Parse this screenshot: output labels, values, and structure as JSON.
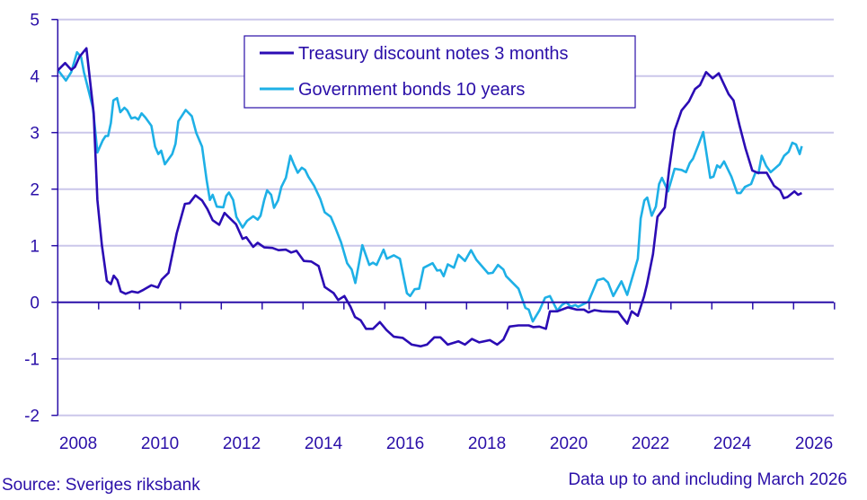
{
  "chart_data": {
    "type": "line",
    "title": "",
    "xlabel": "",
    "ylabel": "",
    "ylim": [
      -2,
      5
    ],
    "xlim": [
      2008,
      2027
    ],
    "y_ticks": [
      "5",
      "4",
      "3",
      "2",
      "1",
      "0",
      "-1",
      "-2"
    ],
    "y_tick_values": [
      5,
      4,
      3,
      2,
      1,
      0,
      -1,
      -2
    ],
    "x_ticks": [
      "2008",
      "2010",
      "2012",
      "2014",
      "2016",
      "2018",
      "2020",
      "2022",
      "2024",
      "2026"
    ],
    "grid": true,
    "legend_position": "top-center",
    "colors": {
      "treasury": "#2b0cb4",
      "bonds": "#1eb0e6",
      "axis": "#2a0fa8",
      "grid": "#cbc7ea"
    },
    "series": [
      {
        "name": "Treasury discount notes 3 months",
        "points": [
          [
            2008.0,
            4.1
          ],
          [
            2008.18,
            4.23
          ],
          [
            2008.33,
            4.11
          ],
          [
            2008.42,
            4.16
          ],
          [
            2008.53,
            4.34
          ],
          [
            2008.7,
            4.49
          ],
          [
            2008.88,
            3.34
          ],
          [
            2008.97,
            1.81
          ],
          [
            2009.08,
            1.01
          ],
          [
            2009.2,
            0.38
          ],
          [
            2009.3,
            0.32
          ],
          [
            2009.37,
            0.47
          ],
          [
            2009.46,
            0.39
          ],
          [
            2009.54,
            0.19
          ],
          [
            2009.66,
            0.15
          ],
          [
            2009.81,
            0.19
          ],
          [
            2009.96,
            0.17
          ],
          [
            2010.1,
            0.22
          ],
          [
            2010.29,
            0.3
          ],
          [
            2010.45,
            0.26
          ],
          [
            2010.54,
            0.4
          ],
          [
            2010.71,
            0.52
          ],
          [
            2010.91,
            1.22
          ],
          [
            2011.11,
            1.74
          ],
          [
            2011.22,
            1.75
          ],
          [
            2011.37,
            1.89
          ],
          [
            2011.53,
            1.8
          ],
          [
            2011.66,
            1.65
          ],
          [
            2011.79,
            1.45
          ],
          [
            2011.95,
            1.37
          ],
          [
            2012.08,
            1.58
          ],
          [
            2012.19,
            1.5
          ],
          [
            2012.36,
            1.38
          ],
          [
            2012.52,
            1.12
          ],
          [
            2012.61,
            1.15
          ],
          [
            2012.78,
            0.98
          ],
          [
            2012.89,
            1.05
          ],
          [
            2013.05,
            0.97
          ],
          [
            2013.25,
            0.96
          ],
          [
            2013.4,
            0.92
          ],
          [
            2013.58,
            0.93
          ],
          [
            2013.71,
            0.88
          ],
          [
            2013.84,
            0.91
          ],
          [
            2014.02,
            0.73
          ],
          [
            2014.2,
            0.72
          ],
          [
            2014.38,
            0.64
          ],
          [
            2014.53,
            0.27
          ],
          [
            2014.75,
            0.16
          ],
          [
            2014.86,
            0.04
          ],
          [
            2015.01,
            0.11
          ],
          [
            2015.16,
            -0.08
          ],
          [
            2015.27,
            -0.26
          ],
          [
            2015.41,
            -0.32
          ],
          [
            2015.54,
            -0.47
          ],
          [
            2015.71,
            -0.47
          ],
          [
            2015.88,
            -0.35
          ],
          [
            2016.04,
            -0.49
          ],
          [
            2016.22,
            -0.61
          ],
          [
            2016.44,
            -0.63
          ],
          [
            2016.66,
            -0.75
          ],
          [
            2016.88,
            -0.78
          ],
          [
            2017.03,
            -0.75
          ],
          [
            2017.21,
            -0.62
          ],
          [
            2017.36,
            -0.62
          ],
          [
            2017.54,
            -0.75
          ],
          [
            2017.8,
            -0.69
          ],
          [
            2017.96,
            -0.75
          ],
          [
            2018.13,
            -0.65
          ],
          [
            2018.31,
            -0.71
          ],
          [
            2018.57,
            -0.67
          ],
          [
            2018.75,
            -0.75
          ],
          [
            2018.9,
            -0.66
          ],
          [
            2019.05,
            -0.43
          ],
          [
            2019.27,
            -0.41
          ],
          [
            2019.52,
            -0.41
          ],
          [
            2019.63,
            -0.44
          ],
          [
            2019.78,
            -0.43
          ],
          [
            2019.94,
            -0.47
          ],
          [
            2020.04,
            -0.16
          ],
          [
            2020.22,
            -0.16
          ],
          [
            2020.48,
            -0.09
          ],
          [
            2020.69,
            -0.13
          ],
          [
            2020.87,
            -0.13
          ],
          [
            2020.98,
            -0.18
          ],
          [
            2021.13,
            -0.14
          ],
          [
            2021.31,
            -0.16
          ],
          [
            2021.71,
            -0.17
          ],
          [
            2021.82,
            -0.28
          ],
          [
            2021.93,
            -0.38
          ],
          [
            2022.04,
            -0.16
          ],
          [
            2022.19,
            -0.24
          ],
          [
            2022.34,
            0.1
          ],
          [
            2022.41,
            0.31
          ],
          [
            2022.56,
            0.85
          ],
          [
            2022.67,
            1.51
          ],
          [
            2022.85,
            1.68
          ],
          [
            2022.96,
            2.38
          ],
          [
            2023.09,
            3.04
          ],
          [
            2023.26,
            3.39
          ],
          [
            2023.44,
            3.55
          ],
          [
            2023.59,
            3.77
          ],
          [
            2023.71,
            3.84
          ],
          [
            2023.86,
            4.07
          ],
          [
            2024.02,
            3.96
          ],
          [
            2024.17,
            4.05
          ],
          [
            2024.41,
            3.68
          ],
          [
            2024.53,
            3.57
          ],
          [
            2024.68,
            3.12
          ],
          [
            2024.82,
            2.73
          ],
          [
            2024.99,
            2.33
          ],
          [
            2025.12,
            2.29
          ],
          [
            2025.34,
            2.29
          ],
          [
            2025.52,
            2.06
          ],
          [
            2025.67,
            1.98
          ],
          [
            2025.76,
            1.84
          ],
          [
            2025.85,
            1.86
          ],
          [
            2026.02,
            1.96
          ],
          [
            2026.11,
            1.9
          ],
          [
            2026.2,
            1.93
          ]
        ]
      },
      {
        "name": "Government bonds 10 years",
        "points": [
          [
            2008.02,
            4.09
          ],
          [
            2008.2,
            3.92
          ],
          [
            2008.33,
            4.07
          ],
          [
            2008.47,
            4.42
          ],
          [
            2008.57,
            4.34
          ],
          [
            2008.64,
            4.07
          ],
          [
            2008.86,
            3.44
          ],
          [
            2008.97,
            2.65
          ],
          [
            2009.1,
            2.86
          ],
          [
            2009.17,
            2.94
          ],
          [
            2009.23,
            2.94
          ],
          [
            2009.3,
            3.17
          ],
          [
            2009.36,
            3.57
          ],
          [
            2009.45,
            3.61
          ],
          [
            2009.53,
            3.36
          ],
          [
            2009.63,
            3.44
          ],
          [
            2009.7,
            3.39
          ],
          [
            2009.8,
            3.25
          ],
          [
            2009.89,
            3.27
          ],
          [
            2009.97,
            3.23
          ],
          [
            2010.05,
            3.34
          ],
          [
            2010.14,
            3.27
          ],
          [
            2010.29,
            3.12
          ],
          [
            2010.38,
            2.75
          ],
          [
            2010.46,
            2.62
          ],
          [
            2010.53,
            2.68
          ],
          [
            2010.62,
            2.44
          ],
          [
            2010.8,
            2.62
          ],
          [
            2010.88,
            2.8
          ],
          [
            2010.95,
            3.2
          ],
          [
            2011.13,
            3.4
          ],
          [
            2011.28,
            3.29
          ],
          [
            2011.39,
            2.99
          ],
          [
            2011.53,
            2.75
          ],
          [
            2011.64,
            2.17
          ],
          [
            2011.72,
            1.81
          ],
          [
            2011.79,
            1.9
          ],
          [
            2011.89,
            1.69
          ],
          [
            2012.05,
            1.68
          ],
          [
            2012.12,
            1.88
          ],
          [
            2012.19,
            1.94
          ],
          [
            2012.29,
            1.81
          ],
          [
            2012.37,
            1.51
          ],
          [
            2012.52,
            1.32
          ],
          [
            2012.63,
            1.44
          ],
          [
            2012.78,
            1.52
          ],
          [
            2012.89,
            1.46
          ],
          [
            2012.96,
            1.53
          ],
          [
            2013.05,
            1.81
          ],
          [
            2013.12,
            1.98
          ],
          [
            2013.22,
            1.9
          ],
          [
            2013.29,
            1.67
          ],
          [
            2013.39,
            1.8
          ],
          [
            2013.47,
            2.04
          ],
          [
            2013.58,
            2.2
          ],
          [
            2013.69,
            2.59
          ],
          [
            2013.78,
            2.43
          ],
          [
            2013.87,
            2.29
          ],
          [
            2013.97,
            2.38
          ],
          [
            2014.05,
            2.34
          ],
          [
            2014.13,
            2.22
          ],
          [
            2014.27,
            2.06
          ],
          [
            2014.42,
            1.83
          ],
          [
            2014.53,
            1.59
          ],
          [
            2014.68,
            1.51
          ],
          [
            2014.79,
            1.32
          ],
          [
            2014.93,
            1.06
          ],
          [
            2015.08,
            0.69
          ],
          [
            2015.19,
            0.58
          ],
          [
            2015.28,
            0.34
          ],
          [
            2015.45,
            1.01
          ],
          [
            2015.62,
            0.66
          ],
          [
            2015.71,
            0.7
          ],
          [
            2015.8,
            0.66
          ],
          [
            2015.97,
            0.93
          ],
          [
            2016.05,
            0.77
          ],
          [
            2016.22,
            0.83
          ],
          [
            2016.37,
            0.77
          ],
          [
            2016.54,
            0.16
          ],
          [
            2016.62,
            0.11
          ],
          [
            2016.73,
            0.23
          ],
          [
            2016.84,
            0.24
          ],
          [
            2016.95,
            0.61
          ],
          [
            2017.17,
            0.69
          ],
          [
            2017.28,
            0.56
          ],
          [
            2017.36,
            0.57
          ],
          [
            2017.44,
            0.46
          ],
          [
            2017.54,
            0.67
          ],
          [
            2017.69,
            0.61
          ],
          [
            2017.8,
            0.84
          ],
          [
            2017.96,
            0.73
          ],
          [
            2018.11,
            0.92
          ],
          [
            2018.24,
            0.75
          ],
          [
            2018.53,
            0.51
          ],
          [
            2018.64,
            0.52
          ],
          [
            2018.77,
            0.66
          ],
          [
            2018.9,
            0.58
          ],
          [
            2018.97,
            0.46
          ],
          [
            2019.27,
            0.24
          ],
          [
            2019.44,
            -0.1
          ],
          [
            2019.52,
            -0.13
          ],
          [
            2019.62,
            -0.34
          ],
          [
            2019.78,
            -0.15
          ],
          [
            2019.92,
            0.08
          ],
          [
            2020.04,
            0.11
          ],
          [
            2020.22,
            -0.15
          ],
          [
            2020.33,
            -0.05
          ],
          [
            2020.44,
            0.0
          ],
          [
            2020.55,
            -0.08
          ],
          [
            2020.66,
            -0.05
          ],
          [
            2020.73,
            -0.08
          ],
          [
            2020.98,
            0.01
          ],
          [
            2021.2,
            0.39
          ],
          [
            2021.35,
            0.42
          ],
          [
            2021.46,
            0.35
          ],
          [
            2021.59,
            0.11
          ],
          [
            2021.79,
            0.37
          ],
          [
            2021.93,
            0.13
          ],
          [
            2022.19,
            0.77
          ],
          [
            2022.26,
            1.48
          ],
          [
            2022.35,
            1.8
          ],
          [
            2022.42,
            1.85
          ],
          [
            2022.53,
            1.53
          ],
          [
            2022.63,
            1.69
          ],
          [
            2022.71,
            2.09
          ],
          [
            2022.78,
            2.2
          ],
          [
            2022.93,
            1.96
          ],
          [
            2023.09,
            2.36
          ],
          [
            2023.26,
            2.34
          ],
          [
            2023.37,
            2.3
          ],
          [
            2023.46,
            2.46
          ],
          [
            2023.54,
            2.54
          ],
          [
            2023.67,
            2.78
          ],
          [
            2023.79,
            3.01
          ],
          [
            2023.96,
            2.2
          ],
          [
            2024.04,
            2.22
          ],
          [
            2024.13,
            2.42
          ],
          [
            2024.2,
            2.38
          ],
          [
            2024.3,
            2.49
          ],
          [
            2024.48,
            2.22
          ],
          [
            2024.62,
            1.93
          ],
          [
            2024.7,
            1.93
          ],
          [
            2024.81,
            2.04
          ],
          [
            2024.96,
            2.09
          ],
          [
            2025.07,
            2.3
          ],
          [
            2025.14,
            2.28
          ],
          [
            2025.22,
            2.59
          ],
          [
            2025.33,
            2.41
          ],
          [
            2025.44,
            2.3
          ],
          [
            2025.66,
            2.44
          ],
          [
            2025.77,
            2.59
          ],
          [
            2025.88,
            2.66
          ],
          [
            2025.97,
            2.82
          ],
          [
            2026.06,
            2.79
          ],
          [
            2026.15,
            2.62
          ],
          [
            2026.2,
            2.76
          ]
        ]
      }
    ]
  },
  "footer": {
    "source": "Source: Sveriges riksbank",
    "note": "Data up to and including March 2026"
  }
}
